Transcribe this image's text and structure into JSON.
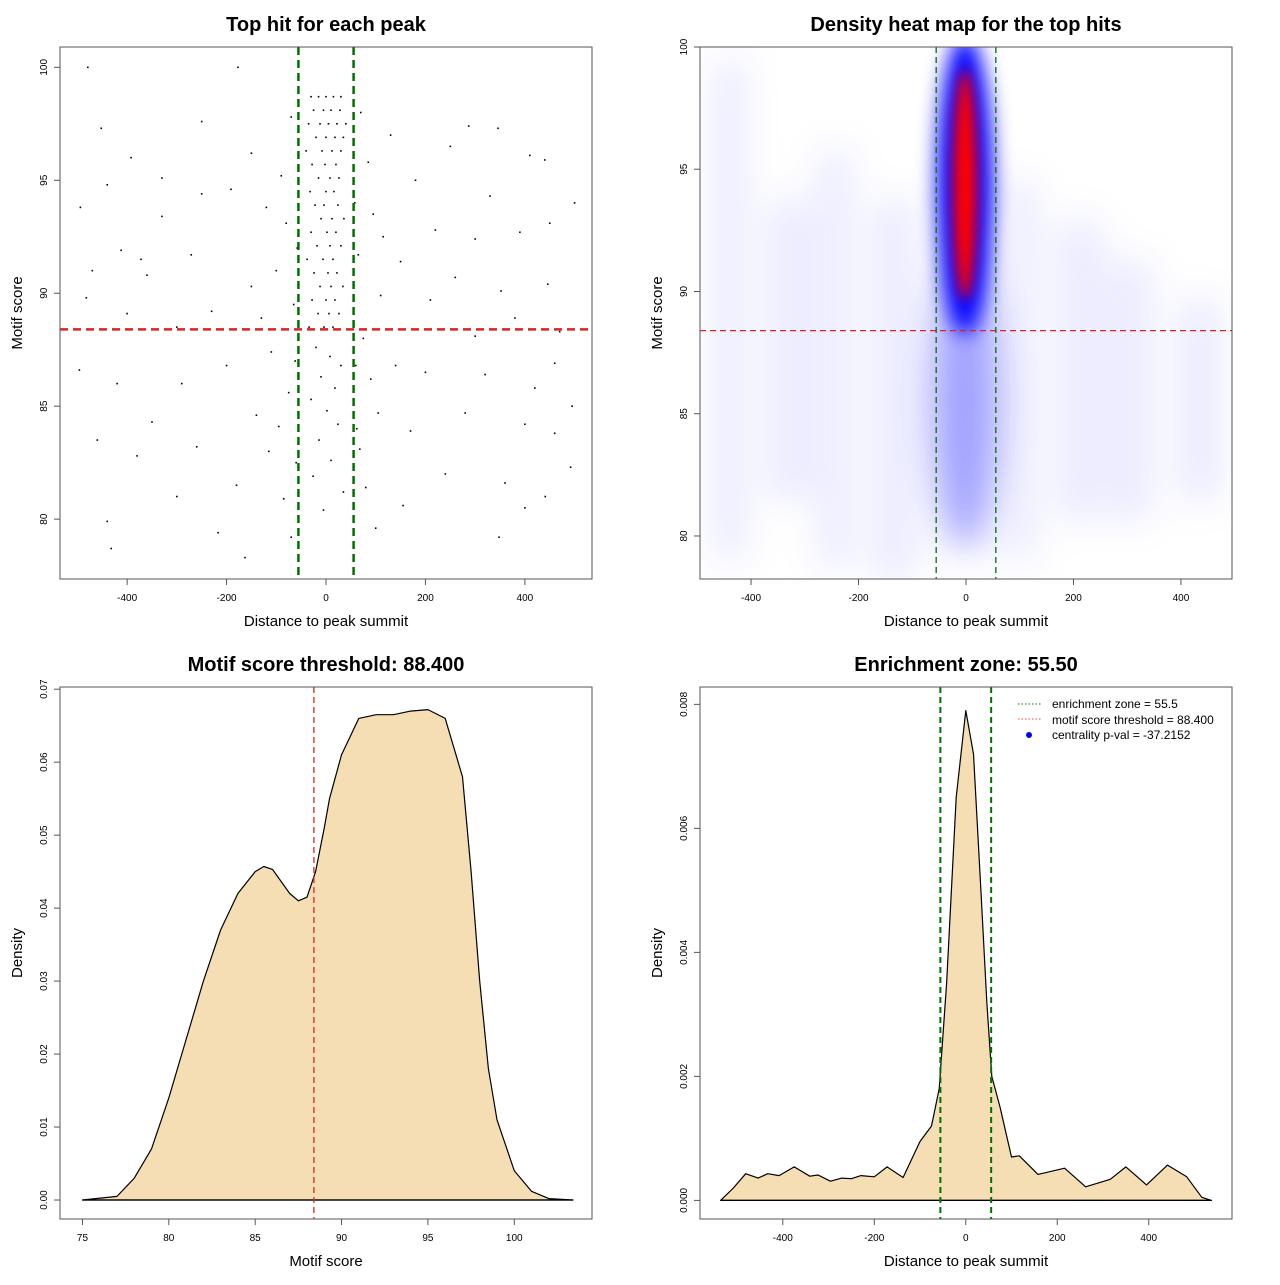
{
  "chart_data": [
    {
      "type": "scatter",
      "title": "Top hit for each peak",
      "xlabel": "Distance to peak summit",
      "ylabel": "Motif score",
      "xlim": [
        -535,
        535
      ],
      "ylim": [
        77.35,
        100.9
      ],
      "xticks": [
        -400,
        -200,
        0,
        200,
        400
      ],
      "xtick_labels": [
        "-400",
        "-200",
        "0",
        "200",
        "400"
      ],
      "yticks": [
        80,
        85,
        90,
        95,
        100
      ],
      "ytick_labels": [
        "80",
        "85",
        "90",
        "95",
        "100"
      ],
      "grid": false,
      "hlines": [
        {
          "y": 88.4,
          "color": "#dd2222"
        }
      ],
      "vlines": [
        {
          "x": -55.5,
          "color": "#007000"
        },
        {
          "x": 55.5,
          "color": "#007000"
        }
      ],
      "point_color": "#000000",
      "points": [
        [
          -30,
          98.7
        ],
        [
          -15,
          98.7
        ],
        [
          0,
          98.7
        ],
        [
          15,
          98.7
        ],
        [
          30,
          98.7
        ],
        [
          -25,
          98.1
        ],
        [
          -5,
          98.1
        ],
        [
          10,
          98.1
        ],
        [
          28,
          98.1
        ],
        [
          -35,
          97.5
        ],
        [
          -12,
          97.5
        ],
        [
          5,
          97.5
        ],
        [
          22,
          97.5
        ],
        [
          40,
          97.5
        ],
        [
          -20,
          96.9
        ],
        [
          0,
          96.9
        ],
        [
          18,
          96.9
        ],
        [
          35,
          96.9
        ],
        [
          -40,
          96.3
        ],
        [
          -8,
          96.3
        ],
        [
          12,
          96.3
        ],
        [
          30,
          96.3
        ],
        [
          -28,
          95.7
        ],
        [
          -2,
          95.7
        ],
        [
          20,
          95.7
        ],
        [
          -15,
          95.1
        ],
        [
          8,
          95.1
        ],
        [
          26,
          95.1
        ],
        [
          -32,
          94.5
        ],
        [
          0,
          94.5
        ],
        [
          16,
          94.5
        ],
        [
          -22,
          93.9
        ],
        [
          -4,
          93.9
        ],
        [
          24,
          93.9
        ],
        [
          -10,
          93.3
        ],
        [
          12,
          93.3
        ],
        [
          36,
          93.3
        ],
        [
          -30,
          92.7
        ],
        [
          2,
          92.7
        ],
        [
          20,
          92.7
        ],
        [
          -18,
          92.1
        ],
        [
          8,
          92.1
        ],
        [
          30,
          92.1
        ],
        [
          -38,
          91.5
        ],
        [
          -6,
          91.5
        ],
        [
          14,
          91.5
        ],
        [
          -24,
          90.9
        ],
        [
          4,
          90.9
        ],
        [
          22,
          90.9
        ],
        [
          -12,
          90.3
        ],
        [
          10,
          90.3
        ],
        [
          34,
          90.3
        ],
        [
          -28,
          89.7
        ],
        [
          0,
          89.7
        ],
        [
          18,
          89.7
        ],
        [
          -16,
          89.1
        ],
        [
          6,
          89.1
        ],
        [
          26,
          89.1
        ],
        [
          -34,
          88.5
        ],
        [
          -4,
          88.5
        ],
        [
          14,
          88.5
        ],
        [
          -20,
          87.6
        ],
        [
          8,
          87.2
        ],
        [
          30,
          86.8
        ],
        [
          -10,
          86.3
        ],
        [
          18,
          85.8
        ],
        [
          -30,
          85.3
        ],
        [
          2,
          84.8
        ],
        [
          24,
          84.2
        ],
        [
          -14,
          83.5
        ],
        [
          10,
          82.6
        ],
        [
          -26,
          81.9
        ],
        [
          35,
          81.2
        ],
        [
          -5,
          80.4
        ],
        [
          -70,
          97.8
        ],
        [
          -90,
          95.2
        ],
        [
          -80,
          93.1
        ],
        [
          -100,
          91.0
        ],
        [
          -65,
          89.5
        ],
        [
          -110,
          87.4
        ],
        [
          -75,
          85.6
        ],
        [
          -95,
          84.1
        ],
        [
          -60,
          82.5
        ],
        [
          -85,
          80.9
        ],
        [
          -70,
          79.2
        ],
        [
          -115,
          83.0
        ],
        [
          70,
          98.0
        ],
        [
          85,
          95.8
        ],
        [
          95,
          93.5
        ],
        [
          65,
          91.7
        ],
        [
          110,
          89.9
        ],
        [
          75,
          88.0
        ],
        [
          90,
          86.2
        ],
        [
          105,
          84.7
        ],
        [
          68,
          83.1
        ],
        [
          80,
          81.4
        ],
        [
          100,
          79.6
        ],
        [
          115,
          92.5
        ],
        [
          60,
          86.8
        ],
        [
          -58,
          92.0
        ],
        [
          58,
          94.0
        ],
        [
          -62,
          87.0
        ],
        [
          62,
          84.0
        ],
        [
          -479,
          100
        ],
        [
          -177,
          100
        ],
        [
          346,
          97.3
        ],
        [
          -452,
          97.3
        ],
        [
          287,
          97.4
        ],
        [
          410,
          96.1
        ],
        [
          -392,
          96
        ],
        [
          500,
          94
        ],
        [
          -494,
          93.8
        ],
        [
          -412,
          91.9
        ],
        [
          446,
          90.4
        ],
        [
          -482,
          89.8
        ],
        [
          352,
          90.1
        ],
        [
          -496,
          86.6
        ],
        [
          495,
          85
        ],
        [
          441,
          81
        ],
        [
          -440,
          79.9
        ],
        [
          -163,
          78.3
        ],
        [
          -217,
          79.4
        ],
        [
          348,
          79.2
        ],
        [
          155,
          80.6
        ],
        [
          -432,
          78.7
        ],
        [
          492,
          82.3
        ],
        [
          -372,
          91.5
        ],
        [
          -271,
          91.7
        ],
        [
          -191,
          94.6
        ],
        [
          -150,
          96.2
        ],
        [
          -330,
          95.1
        ],
        [
          -250,
          97.6
        ],
        [
          -300,
          88.5
        ],
        [
          -350,
          84.3
        ],
        [
          -420,
          86.0
        ],
        [
          -260,
          83.2
        ],
        [
          -200,
          86.8
        ],
        [
          -150,
          90.3
        ],
        [
          -180,
          81.5
        ],
        [
          -300,
          81.0
        ],
        [
          -380,
          82.8
        ],
        [
          -460,
          83.5
        ],
        [
          -230,
          89.2
        ],
        [
          -140,
          84.6
        ],
        [
          -330,
          93.4
        ],
        [
          -470,
          91.0
        ],
        [
          180,
          95.0
        ],
        [
          220,
          92.8
        ],
        [
          260,
          90.7
        ],
        [
          300,
          88.1
        ],
        [
          200,
          86.5
        ],
        [
          170,
          83.9
        ],
        [
          240,
          82.0
        ],
        [
          280,
          84.7
        ],
        [
          320,
          86.4
        ],
        [
          380,
          88.9
        ],
        [
          420,
          85.8
        ],
        [
          460,
          83.8
        ],
        [
          390,
          92.7
        ],
        [
          330,
          94.3
        ],
        [
          440,
          95.9
        ],
        [
          470,
          88.3
        ],
        [
          250,
          96.5
        ],
        [
          150,
          91.4
        ],
        [
          210,
          89.7
        ],
        [
          360,
          81.6
        ],
        [
          400,
          80.5
        ],
        [
          300,
          92.4
        ],
        [
          450,
          93.1
        ],
        [
          140,
          86.8
        ],
        [
          -120,
          93.8
        ],
        [
          -130,
          88.9
        ],
        [
          130,
          97.0
        ],
        [
          -250,
          94.4
        ],
        [
          -400,
          89.1
        ],
        [
          -360,
          90.8
        ],
        [
          -290,
          86.0
        ],
        [
          -440,
          94.8
        ],
        [
          460,
          86.9
        ],
        [
          400,
          84.2
        ]
      ]
    },
    {
      "type": "heatmap",
      "title": "Density heat map for the top hits",
      "xlabel": "Distance to peak summit",
      "ylabel": "Motif score",
      "xlim": [
        -495,
        495
      ],
      "ylim": [
        78.24,
        100
      ],
      "xticks": [
        -400,
        -200,
        0,
        200,
        400
      ],
      "xtick_labels": [
        "-400",
        "-200",
        "0",
        "200",
        "400"
      ],
      "yticks": [
        80,
        85,
        90,
        95,
        100
      ],
      "ytick_labels": [
        "80",
        "85",
        "90",
        "95",
        "100"
      ],
      "colorscale": [
        "#ffffff",
        "#0000ff",
        "#ff0000"
      ],
      "hlines": [
        {
          "y": 88.4,
          "color": "#dd2222"
        }
      ],
      "vlines": [
        {
          "x": -55.5,
          "color": "#007000"
        },
        {
          "x": 55.5,
          "color": "#007000"
        }
      ]
    },
    {
      "type": "area",
      "title": "Motif score threshold: 88.400",
      "xlabel": "Motif score",
      "ylabel": "Density",
      "xlim": [
        73.7,
        104.5
      ],
      "ylim": [
        -0.0026,
        0.0703
      ],
      "xticks": [
        75,
        80,
        85,
        90,
        95,
        100
      ],
      "xtick_labels": [
        "75",
        "80",
        "85",
        "90",
        "95",
        "100"
      ],
      "yticks": [
        0,
        0.01,
        0.02,
        0.03,
        0.04,
        0.05,
        0.06,
        0.07
      ],
      "ytick_labels": [
        "0.00",
        "0.01",
        "0.02",
        "0.03",
        "0.04",
        "0.05",
        "0.06",
        "0.07"
      ],
      "fill": "#f5deb3",
      "vlines": [
        {
          "x": 88.4,
          "color": "#dd2222"
        }
      ],
      "x": [
        75,
        77,
        78,
        79,
        80,
        81,
        82,
        83,
        84,
        85,
        85.5,
        86,
        87,
        87.5,
        88,
        88.5,
        89,
        89.3,
        90,
        91,
        92,
        93,
        94,
        95,
        96,
        97,
        97.5,
        98,
        98.5,
        99,
        100,
        101,
        102,
        103.4
      ],
      "y": [
        0,
        0.0005,
        0.003,
        0.007,
        0.014,
        0.022,
        0.03,
        0.037,
        0.042,
        0.045,
        0.0457,
        0.0453,
        0.042,
        0.041,
        0.0415,
        0.045,
        0.051,
        0.055,
        0.061,
        0.066,
        0.0665,
        0.0665,
        0.067,
        0.0672,
        0.066,
        0.058,
        0.045,
        0.03,
        0.018,
        0.011,
        0.004,
        0.0012,
        0.0002,
        0
      ]
    },
    {
      "type": "area",
      "title": "Enrichment zone: 55.50",
      "xlabel": "Distance to peak summit",
      "ylabel": "Density",
      "xlim": [
        -581,
        582
      ],
      "ylim": [
        -0.0003,
        0.00828
      ],
      "xticks": [
        -400,
        -200,
        0,
        200,
        400
      ],
      "xtick_labels": [
        "-400",
        "-200",
        "0",
        "200",
        "400"
      ],
      "yticks": [
        0,
        0.002,
        0.004,
        0.006,
        0.008
      ],
      "ytick_labels": [
        "0.000",
        "0.002",
        "0.004",
        "0.006",
        "0.008"
      ],
      "fill": "#f5deb3",
      "vlines": [
        {
          "x": -55.5,
          "color": "#007000"
        },
        {
          "x": 55.5,
          "color": "#007000"
        }
      ],
      "x": [
        -536,
        -508,
        -481,
        -454,
        -433,
        -408,
        -375,
        -341,
        -323,
        -296,
        -271,
        -250,
        -229,
        -200,
        -172,
        -137,
        -100,
        -75,
        -58,
        -42,
        -21,
        0,
        17,
        33,
        46,
        57,
        75,
        100,
        117,
        158,
        216,
        262,
        316,
        350,
        395,
        441,
        483,
        516,
        537
      ],
      "y": [
        0,
        0.0002,
        0.00043,
        0.00036,
        0.00043,
        0.0004,
        0.00054,
        0.00039,
        0.00041,
        0.00031,
        0.00036,
        0.00035,
        0.0004,
        0.00038,
        0.00054,
        0.00037,
        0.00095,
        0.0012,
        0.0018,
        0.0035,
        0.0065,
        0.0079,
        0.0072,
        0.005,
        0.0032,
        0.002,
        0.0015,
        0.0007,
        0.00072,
        0.00042,
        0.00052,
        0.00022,
        0.00034,
        0.00054,
        0.00025,
        0.00057,
        0.00038,
        5e-05,
        0
      ],
      "legend": {
        "position": "top-right",
        "entries": [
          {
            "label": "enrichment zone = 55.5",
            "color": "#007000",
            "symbol": "dotted-line"
          },
          {
            "label": "motif score threshold = 88.400",
            "color": "#ff4444",
            "symbol": "dotted-line"
          },
          {
            "label": "centrality p-val = -37.2152",
            "color": "#0000ff",
            "symbol": "dot"
          }
        ]
      }
    }
  ]
}
